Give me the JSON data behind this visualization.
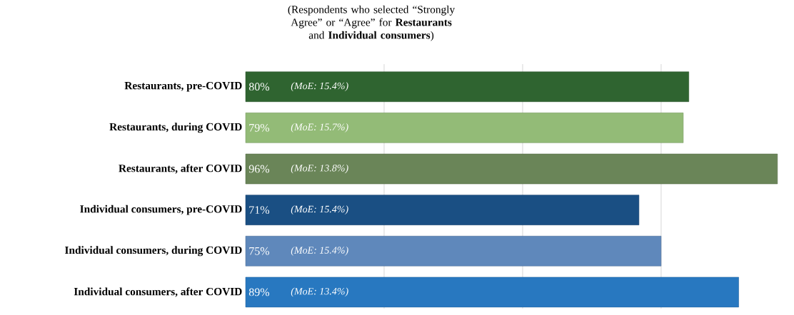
{
  "chart_data": {
    "type": "bar",
    "orientation": "horizontal",
    "title": "(Respondents who selected “Strongly Agree” or “Agree” for **Restaurants** and **Individual consumers**)",
    "categories": [
      "Restaurants, pre-COVID",
      "Restaurants, during COVID",
      "Restaurants, after COVID",
      "Individual consumers, pre-COVID",
      "Individual consumers, during COVID",
      "Individual consumers, after COVID"
    ],
    "values": [
      80,
      79,
      96,
      71,
      75,
      89
    ],
    "colors": [
      "#2f6430",
      "#93bb77",
      "#6a8558",
      "#1a4f83",
      "#5f88bb",
      "#2878c0"
    ],
    "value_labels": [
      "80%",
      "79%",
      "96%",
      "71%",
      "75%",
      "89%"
    ],
    "annotations": [
      {
        "text": "(MoE: 15.4%)",
        "y": "Restaurants, pre-COVID"
      },
      {
        "text": "(MoE: 15.7%)",
        "y": "Restaurants, during COVID"
      },
      {
        "text": "(MoE: 13.8%)",
        "y": "Restaurants, after COVID"
      },
      {
        "text": "(MoE: 15.4%)",
        "y": "Individual consumers, pre-COVID"
      },
      {
        "text": "(MoE: 15.4%)",
        "y": "Individual consumers, during COVID"
      },
      {
        "text": "(MoE: 13.4%)",
        "y": "Individual consumers, after COVID"
      }
    ],
    "xticks": [
      {
        "value": 25,
        "label": null
      },
      {
        "value": 50,
        "label": null
      },
      {
        "value": 75,
        "label": null
      }
    ],
    "grid": "x"
  }
}
